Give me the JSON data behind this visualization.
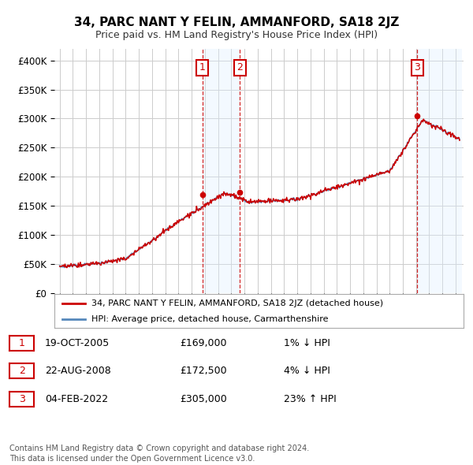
{
  "title": "34, PARC NANT Y FELIN, AMMANFORD, SA18 2JZ",
  "subtitle": "Price paid vs. HM Land Registry's House Price Index (HPI)",
  "ylim": [
    0,
    420000
  ],
  "yticks": [
    0,
    50000,
    100000,
    150000,
    200000,
    250000,
    300000,
    350000,
    400000
  ],
  "ytick_labels": [
    "£0",
    "£50K",
    "£100K",
    "£150K",
    "£200K",
    "£250K",
    "£300K",
    "£350K",
    "£400K"
  ],
  "xlim_start": 1994.6,
  "xlim_end": 2025.6,
  "sale_dates": [
    2005.8,
    2008.65,
    2022.09
  ],
  "sale_prices": [
    169000,
    172500,
    305000
  ],
  "sale_labels": [
    "1",
    "2",
    "3"
  ],
  "hpi_color": "#5588bb",
  "price_color": "#cc0000",
  "shade_color": "#ddeeff",
  "annotation_entries": [
    {
      "label": "1",
      "date": "19-OCT-2005",
      "price": "£169,000",
      "hpi_rel": "1% ↓ HPI"
    },
    {
      "label": "2",
      "date": "22-AUG-2008",
      "price": "£172,500",
      "hpi_rel": "4% ↓ HPI"
    },
    {
      "label": "3",
      "date": "04-FEB-2022",
      "price": "£305,000",
      "hpi_rel": "23% ↑ HPI"
    }
  ],
  "legend_entries": [
    {
      "label": "34, PARC NANT Y FELIN, AMMANFORD, SA18 2JZ (detached house)",
      "color": "#cc0000"
    },
    {
      "label": "HPI: Average price, detached house, Carmarthenshire",
      "color": "#5588bb"
    }
  ],
  "footer": "Contains HM Land Registry data © Crown copyright and database right 2024.\nThis data is licensed under the Open Government Licence v3.0.",
  "background_color": "#ffffff",
  "grid_color": "#cccccc"
}
